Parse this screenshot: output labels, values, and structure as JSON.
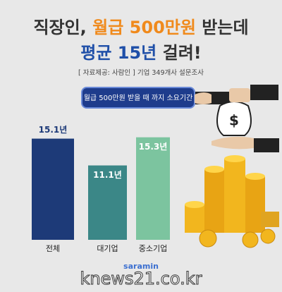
{
  "title": {
    "line1": [
      "직장인,",
      "월급 500만원",
      "받는데"
    ],
    "line2": [
      "평균 15년",
      "걸려!"
    ]
  },
  "source": [
    "[ 자료제공: 사람인 ]",
    "기업 349개사 설문조사"
  ],
  "chart_data": {
    "type": "bar",
    "title": "월급 500만원 받을 때 까지 소요기간",
    "categories": [
      "전체",
      "대기업",
      "중소기업"
    ],
    "values": [
      15.1,
      11.1,
      15.3
    ],
    "value_labels": [
      "15.1년",
      "11.1년",
      "15.3년"
    ],
    "colors": [
      "#1d3a78",
      "#3b8787",
      "#7cc49f"
    ]
  },
  "logo": "saramin",
  "watermark": "knews21.co.kr"
}
